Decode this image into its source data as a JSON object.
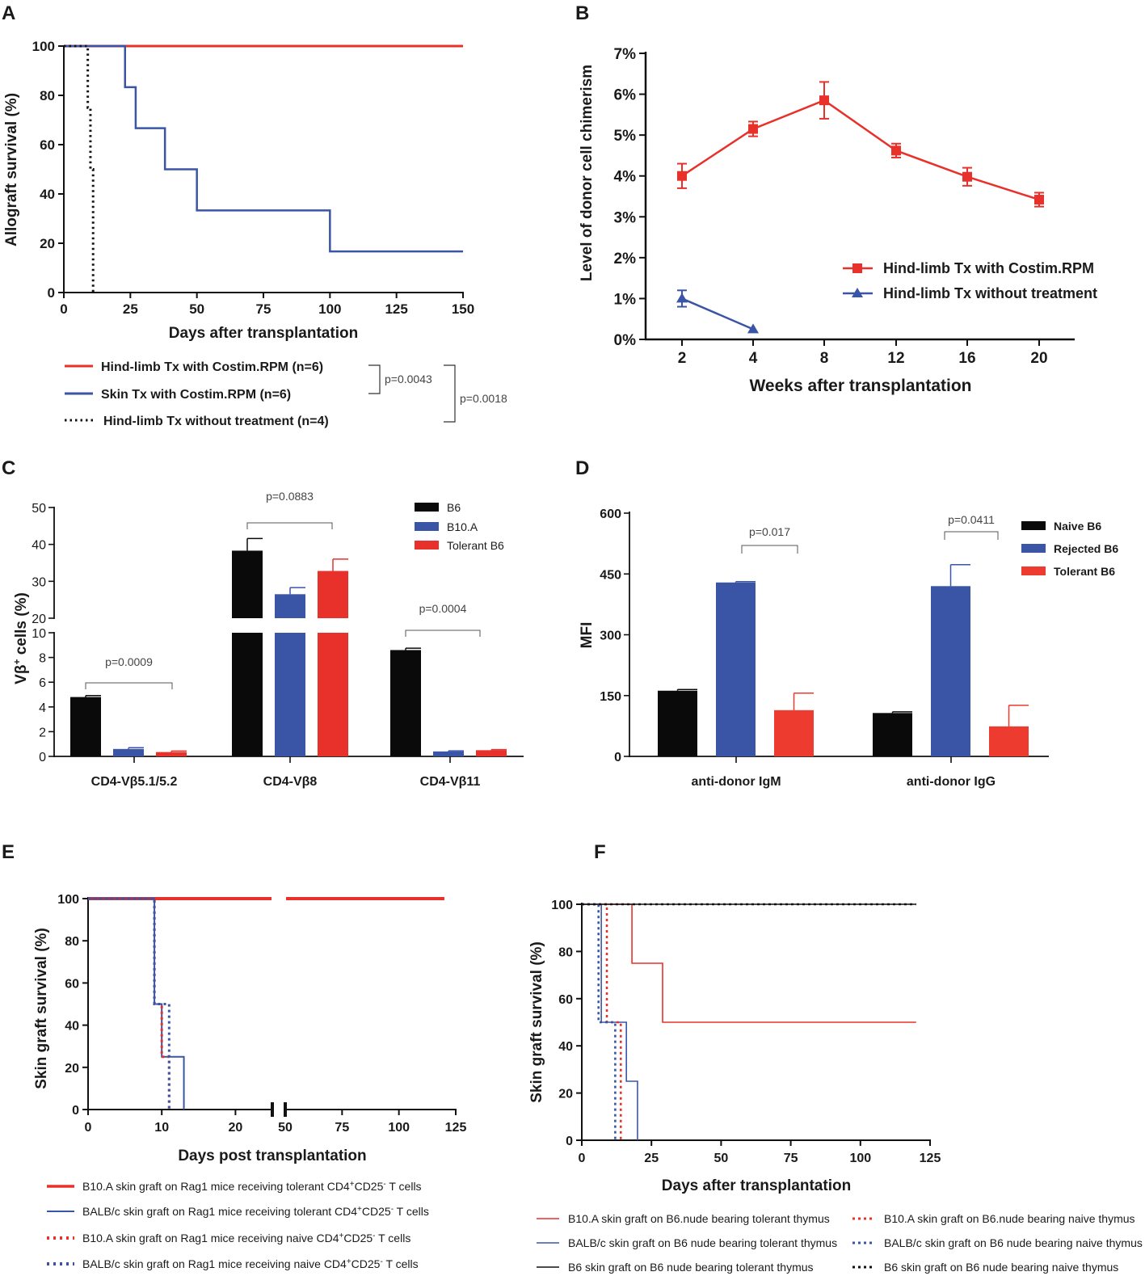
{
  "chart_data": [
    {
      "panel": "A",
      "type": "line",
      "subtype": "kaplan-meier",
      "xlabel": "Days after transplantation",
      "ylabel": "Allograft survival (%)",
      "xlim": [
        0,
        150
      ],
      "ylim": [
        0,
        100
      ],
      "xticks": [
        "0",
        "25",
        "50",
        "75",
        "100",
        "125",
        "150"
      ],
      "yticks": [
        "0",
        "20",
        "40",
        "60",
        "80",
        "100"
      ],
      "series": [
        {
          "name": "Hind-limb Tx with Costim.RPM (n=6)",
          "color": "#e8312a",
          "style": "solid",
          "steps": [
            [
              0,
              100
            ],
            [
              150,
              100
            ]
          ]
        },
        {
          "name": "Skin Tx with Costim.RPM (n=6)",
          "color": "#3a55a6",
          "style": "solid",
          "steps": [
            [
              0,
              100
            ],
            [
              23,
              83.3
            ],
            [
              27,
              66.7
            ],
            [
              38,
              50
            ],
            [
              50,
              33.3
            ],
            [
              100,
              16.7
            ],
            [
              150,
              16.7
            ]
          ]
        },
        {
          "name": "Hind-limb Tx without treatment (n=4)",
          "color": "#111111",
          "style": "dotted",
          "steps": [
            [
              0,
              100
            ],
            [
              9,
              75
            ],
            [
              10,
              50
            ],
            [
              11,
              0
            ]
          ]
        }
      ],
      "pvalues": [
        {
          "label": "p=0.0043",
          "between": [
            0,
            1
          ]
        },
        {
          "label": "p=0.0018",
          "between": [
            0,
            2
          ]
        }
      ]
    },
    {
      "panel": "B",
      "type": "line",
      "xlabel": "Weeks after transplantation",
      "ylabel": "Level of donor cell chimerism",
      "categories": [
        "2",
        "4",
        "8",
        "12",
        "16",
        "20"
      ],
      "yticks": [
        "0%",
        "1%",
        "2%",
        "3%",
        "4%",
        "5%",
        "6%",
        "7%"
      ],
      "ylim": [
        0,
        7
      ],
      "series": [
        {
          "name": "Hind-limb Tx with Costim.RPM",
          "color": "#e8312a",
          "marker": "square",
          "values": [
            4.0,
            5.15,
            5.85,
            4.62,
            3.98,
            3.42
          ],
          "errors": [
            0.3,
            0.18,
            0.45,
            0.17,
            0.22,
            0.17
          ]
        },
        {
          "name": "Hind-limb Tx without treatment",
          "color": "#3a55a6",
          "marker": "triangle",
          "values": [
            1.0,
            0.25,
            null,
            null,
            null,
            null
          ],
          "errors": [
            0.2,
            0,
            null,
            null,
            null,
            null
          ]
        }
      ]
    },
    {
      "panel": "C",
      "type": "bar",
      "ylabel": "Vβ+ cells (%)",
      "axis_break": [
        10,
        20
      ],
      "ylim": [
        0,
        50
      ],
      "categories": [
        "CD4-Vβ5.1/5.2",
        "CD4-Vβ8",
        "CD4-Vβ11"
      ],
      "yticks_lower": [
        "0",
        "2",
        "4",
        "6",
        "8",
        "10"
      ],
      "yticks_upper": [
        "20",
        "30",
        "40",
        "50"
      ],
      "series": [
        {
          "name": "B6",
          "color": "#0a0a0a",
          "values": [
            4.8,
            38.3,
            8.6
          ],
          "errors": [
            0.12,
            3.3,
            0.15
          ]
        },
        {
          "name": "B10.A",
          "color": "#3a55a6",
          "values": [
            0.6,
            26.5,
            0.4
          ],
          "errors": [
            0.1,
            1.8,
            0.05
          ]
        },
        {
          "name": "Tolerant B6",
          "color": "#e8312a",
          "values": [
            0.35,
            32.8,
            0.5
          ],
          "errors": [
            0.08,
            3.2,
            0.05
          ]
        }
      ],
      "pvalues": [
        {
          "label": "p=0.0009",
          "category": 0
        },
        {
          "label": "p=0.0883",
          "category": 1
        },
        {
          "label": "p=0.0004",
          "category": 2
        }
      ]
    },
    {
      "panel": "D",
      "type": "bar",
      "ylabel": "MFI",
      "ylim": [
        0,
        600
      ],
      "yticks": [
        "0",
        "150",
        "300",
        "450",
        "600"
      ],
      "categories": [
        "anti-donor IgM",
        "anti-donor IgG"
      ],
      "series": [
        {
          "name": "Naive B6",
          "color": "#0a0a0a",
          "values": [
            162,
            107
          ],
          "errors": [
            3,
            3
          ]
        },
        {
          "name": "Rejected B6",
          "color": "#3a55a6",
          "values": [
            429,
            420
          ],
          "errors": [
            2,
            53
          ]
        },
        {
          "name": "Tolerant B6",
          "color": "#ed3b2f",
          "values": [
            114,
            74
          ],
          "errors": [
            42,
            52
          ]
        }
      ],
      "pvalues": [
        {
          "label": "p=0.017",
          "category": 0
        },
        {
          "label": "p=0.0411",
          "category": 1
        }
      ]
    },
    {
      "panel": "E",
      "type": "line",
      "subtype": "kaplan-meier",
      "xlabel": "Days post transplantation",
      "ylabel": "Skin graft survival (%)",
      "x_axis_break": [
        25,
        50
      ],
      "xticks": [
        "0",
        "10",
        "20",
        "50",
        "75",
        "100",
        "125"
      ],
      "yticks": [
        "0",
        "20",
        "40",
        "60",
        "80",
        "100"
      ],
      "ylim": [
        0,
        100
      ],
      "series": [
        {
          "name": "B10.A skin graft on Rag1 mice receiving tolerant CD4+CD25- T cells",
          "color": "#e8312a",
          "style": "solid",
          "steps": [
            [
              0,
              100
            ],
            [
              120,
              100
            ]
          ]
        },
        {
          "name": "BALB/c skin graft on Rag1 mice receiving tolerant CD4+CD25- T cells",
          "color": "#3a55a6",
          "style": "solid",
          "steps": [
            [
              0,
              100
            ],
            [
              9,
              50
            ],
            [
              10,
              25
            ],
            [
              13,
              0
            ]
          ]
        },
        {
          "name": "B10.A skin graft on Rag1 mice receiving naive CD4+CD25- T cells",
          "color": "#e8312a",
          "style": "dotted",
          "steps": [
            [
              0,
              100
            ],
            [
              9,
              50
            ],
            [
              10,
              25
            ],
            [
              11,
              0
            ]
          ]
        },
        {
          "name": "BALB/c skin graft on Rag1 mice receiving naive CD4+CD25- T cells",
          "color": "#3a55a6",
          "style": "dotted",
          "steps": [
            [
              0,
              100
            ],
            [
              9,
              50
            ],
            [
              11,
              0
            ]
          ]
        }
      ]
    },
    {
      "panel": "F",
      "type": "line",
      "subtype": "kaplan-meier",
      "xlabel": "Days after transplantation",
      "ylabel": "Skin graft survival (%)",
      "xlim": [
        0,
        125
      ],
      "ylim": [
        0,
        100
      ],
      "xticks": [
        "0",
        "25",
        "50",
        "75",
        "100",
        "125"
      ],
      "yticks": [
        "0",
        "20",
        "40",
        "60",
        "80",
        "100"
      ],
      "series": [
        {
          "name": "B10.A skin graft on B6.nude bearing tolerant thymus",
          "color": "#e8312a",
          "style": "solid",
          "steps": [
            [
              0,
              100
            ],
            [
              18,
              75
            ],
            [
              29,
              50
            ],
            [
              120,
              50
            ]
          ]
        },
        {
          "name": "BALB/c skin graft on B6 nude bearing tolerant thymus",
          "color": "#3a55a6",
          "style": "solid",
          "steps": [
            [
              0,
              100
            ],
            [
              7,
              50
            ],
            [
              16,
              25
            ],
            [
              20,
              0
            ]
          ]
        },
        {
          "name": "B6 skin graft on B6 nude bearing tolerant thymus",
          "color": "#111111",
          "style": "solid",
          "steps": [
            [
              0,
              100
            ],
            [
              120,
              100
            ]
          ]
        },
        {
          "name": "B10.A skin graft on B6.nude bearing naive thymus",
          "color": "#e8312a",
          "style": "dotted",
          "steps": [
            [
              0,
              100
            ],
            [
              9,
              50
            ],
            [
              14,
              0
            ]
          ]
        },
        {
          "name": "BALB/c skin graft on B6 nude bearing naive thymus",
          "color": "#3a55a6",
          "style": "dotted",
          "steps": [
            [
              0,
              100
            ],
            [
              6,
              50
            ],
            [
              12,
              0
            ]
          ]
        },
        {
          "name": "B6 skin graft on B6 nude bearing naive thymus",
          "color": "#111111",
          "style": "dotted",
          "steps": [
            [
              0,
              100
            ],
            [
              120,
              100
            ]
          ]
        }
      ]
    }
  ],
  "panels": {
    "A": {
      "letter": "A",
      "xlabel": "Days after transplantation",
      "ylabel": "Allograft survival (%)",
      "legend": [
        "Hind-limb Tx with Costim.RPM (n=6)",
        "Skin Tx with Costim.RPM (n=6)",
        "Hind-limb Tx without treatment (n=4)"
      ],
      "p1": "p=0.0043",
      "p2": "p=0.0018"
    },
    "B": {
      "letter": "B",
      "xlabel": "Weeks after transplantation",
      "ylabel": "Level of donor cell chimerism",
      "legend": [
        "Hind-limb Tx with Costim.RPM",
        "Hind-limb Tx without treatment"
      ]
    },
    "C": {
      "letter": "C",
      "ylabel_main": "Vβ",
      "ylabel_sup": "+",
      "ylabel_rest": " cells (%)",
      "legend": [
        "B6",
        "B10.A",
        "Tolerant B6"
      ]
    },
    "D": {
      "letter": "D",
      "ylabel": "MFI",
      "legend": [
        "Naive B6",
        "Rejected B6",
        "Tolerant B6"
      ]
    },
    "E": {
      "letter": "E",
      "xlabel": "Days post transplantation",
      "ylabel": "Skin graft survival (%)",
      "legend": [
        {
          "pre": "B10.A skin graft on Rag1 mice receiving tolerant CD4",
          "sup1": "+",
          "mid": "CD25",
          "sup2": "-",
          "post": " T cells"
        },
        {
          "pre": "BALB/c skin graft on Rag1 mice receiving tolerant CD4",
          "sup1": "+",
          "mid": "CD25",
          "sup2": "-",
          "post": " T cells"
        },
        {
          "pre": "B10.A skin graft on Rag1 mice receiving naive CD4",
          "sup1": "+",
          "mid": "CD25",
          "sup2": "-",
          "post": " T cells"
        },
        {
          "pre": "BALB/c skin graft on Rag1 mice receiving naive CD4",
          "sup1": "+",
          "mid": "CD25",
          "sup2": "-",
          "post": " T cells"
        }
      ]
    },
    "F": {
      "letter": "F",
      "xlabel": "Days after transplantation",
      "ylabel": "Skin graft survival (%)",
      "legend": [
        "B10.A skin graft on B6.nude bearing tolerant thymus",
        "BALB/c skin graft on B6 nude bearing tolerant thymus",
        "B6 skin graft on B6 nude bearing tolerant thymus",
        "B10.A skin graft on B6.nude bearing naive thymus",
        "BALB/c skin graft on B6 nude bearing naive thymus",
        "B6 skin graft on B6 nude bearing naive thymus"
      ]
    }
  }
}
